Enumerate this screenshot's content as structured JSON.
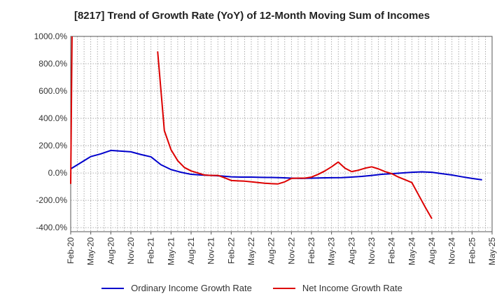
{
  "chart_data": {
    "type": "line",
    "title": "[8217]  Trend of Growth Rate (YoY) of 12-Month Moving Sum of Incomes",
    "x_labels": [
      "Feb-20",
      "May-20",
      "Aug-20",
      "Nov-20",
      "Feb-21",
      "May-21",
      "Aug-21",
      "Nov-21",
      "Feb-22",
      "May-22",
      "Aug-22",
      "Nov-22",
      "Feb-23",
      "May-23",
      "Aug-23",
      "Nov-23",
      "Feb-24",
      "May-24",
      "Aug-24",
      "Nov-24",
      "Feb-25",
      "May-25"
    ],
    "y_ticks": [
      "1000.0%",
      "800.0%",
      "600.0%",
      "400.0%",
      "200.0%",
      "0.0%",
      "-200.0%",
      "-400.0%"
    ],
    "ylim": [
      -430,
      1000
    ],
    "grid": true,
    "legend_position": "bottom",
    "series": [
      {
        "name": "Ordinary Income Growth Rate",
        "color": "#0000cc",
        "values": [
          30,
          75,
          120,
          140,
          165,
          160,
          155,
          135,
          118,
          60,
          25,
          5,
          -10,
          -15,
          -18,
          -22,
          -28,
          -30,
          -30,
          -32,
          -33,
          -35,
          -38,
          -40,
          -38,
          -36,
          -35,
          -34,
          -30,
          -25,
          -18,
          -10,
          -5,
          0,
          5,
          8,
          5,
          -5,
          -15,
          -28,
          -40,
          -50
        ]
      },
      {
        "name": "Net Income Growth Rate",
        "color": "#dd0000",
        "values": [
          1000,
          null,
          null,
          null,
          null,
          null,
          null,
          null,
          null,
          null,
          null,
          null,
          null,
          null,
          null,
          null,
          null,
          null,
          null,
          null,
          null,
          null,
          null,
          null,
          null,
          null,
          null,
          null,
          null,
          null,
          null,
          null,
          null,
          null,
          null,
          null,
          null,
          null,
          null,
          null,
          null,
          null
        ]
      }
    ],
    "net_values": [
      {
        "i": 0,
        "v": -80
      },
      {
        "i": 0.05,
        "v": 1000
      },
      {
        "i": 13,
        "v": 890
      },
      {
        "i": 14,
        "v": 310
      },
      {
        "i": 15,
        "v": 170
      },
      {
        "i": 16,
        "v": 90
      },
      {
        "i": 17,
        "v": 40
      },
      {
        "i": 18,
        "v": 15
      },
      {
        "i": 19,
        "v": 0
      },
      {
        "i": 20,
        "v": -15
      },
      {
        "i": 21,
        "v": -18
      },
      {
        "i": 22,
        "v": -18
      },
      {
        "i": 23,
        "v": -35
      },
      {
        "i": 24,
        "v": -55
      },
      {
        "i": 25,
        "v": -58
      },
      {
        "i": 26,
        "v": -60
      },
      {
        "i": 27,
        "v": -65
      },
      {
        "i": 28,
        "v": -70
      },
      {
        "i": 29,
        "v": -75
      },
      {
        "i": 30,
        "v": -78
      },
      {
        "i": 31,
        "v": -80
      },
      {
        "i": 32,
        "v": -65
      },
      {
        "i": 33,
        "v": -40
      },
      {
        "i": 34,
        "v": -38
      },
      {
        "i": 35,
        "v": -38
      },
      {
        "i": 36,
        "v": -30
      },
      {
        "i": 37,
        "v": -10
      },
      {
        "i": 38,
        "v": 15
      },
      {
        "i": 39,
        "v": 45
      },
      {
        "i": 40,
        "v": 80
      },
      {
        "i": 41,
        "v": 35
      },
      {
        "i": 42,
        "v": 10
      },
      {
        "i": 43,
        "v": 20
      },
      {
        "i": 44,
        "v": 35
      },
      {
        "i": 45,
        "v": 45
      },
      {
        "i": 46,
        "v": 30
      },
      {
        "i": 47,
        "v": 10
      },
      {
        "i": 48,
        "v": -5
      },
      {
        "i": 49,
        "v": -30
      },
      {
        "i": 50,
        "v": -50
      },
      {
        "i": 51,
        "v": -70
      },
      {
        "i": 52,
        "v": -160
      },
      {
        "i": 53,
        "v": -250
      },
      {
        "i": 54,
        "v": -335
      }
    ]
  },
  "legend": {
    "ordinary": "Ordinary Income Growth Rate",
    "net": "Net Income Growth Rate"
  }
}
